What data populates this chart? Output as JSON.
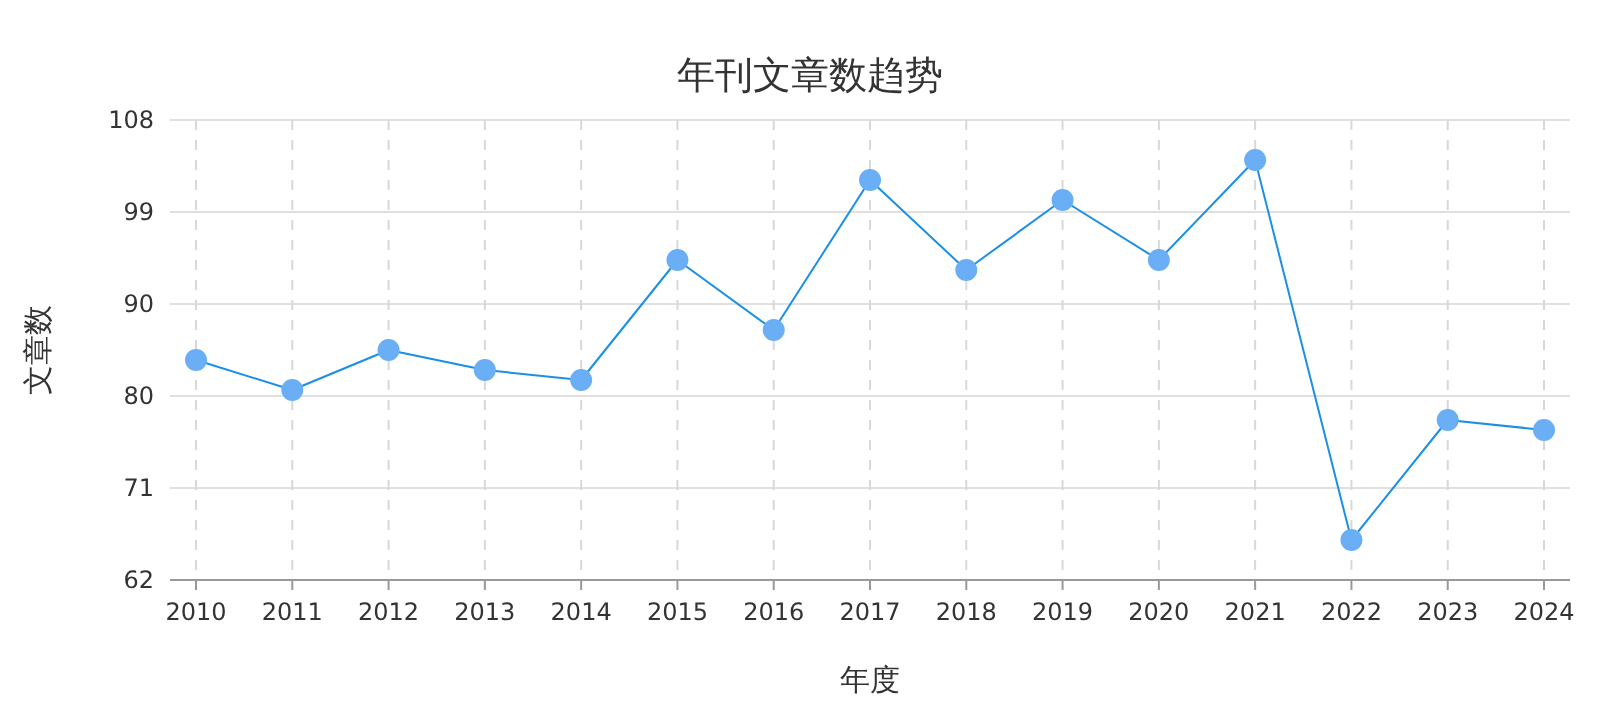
{
  "chart_data": {
    "type": "line",
    "title": "年刊文章数趋势",
    "xlabel": "年度",
    "ylabel": "文章数",
    "categories": [
      "2010",
      "2011",
      "2012",
      "2013",
      "2014",
      "2015",
      "2016",
      "2017",
      "2018",
      "2019",
      "2020",
      "2021",
      "2022",
      "2023",
      "2024"
    ],
    "series": [
      {
        "color": "#1a8fe8",
        "values": [
          84,
          81,
          85,
          83,
          82,
          94,
          87,
          102,
          93,
          100,
          94,
          104,
          66,
          78,
          77
        ]
      }
    ],
    "ylim": [
      62,
      108
    ],
    "yticks": [
      62,
      {
        "value": 71.2,
        "label": "71"
      },
      {
        "value": 80.4,
        "label": "80"
      },
      {
        "value": 89.6,
        "label": "90"
      },
      {
        "value": 98.8,
        "label": "99"
      },
      108
    ],
    "grid": true,
    "marker": "circle",
    "line_style": "solid"
  }
}
